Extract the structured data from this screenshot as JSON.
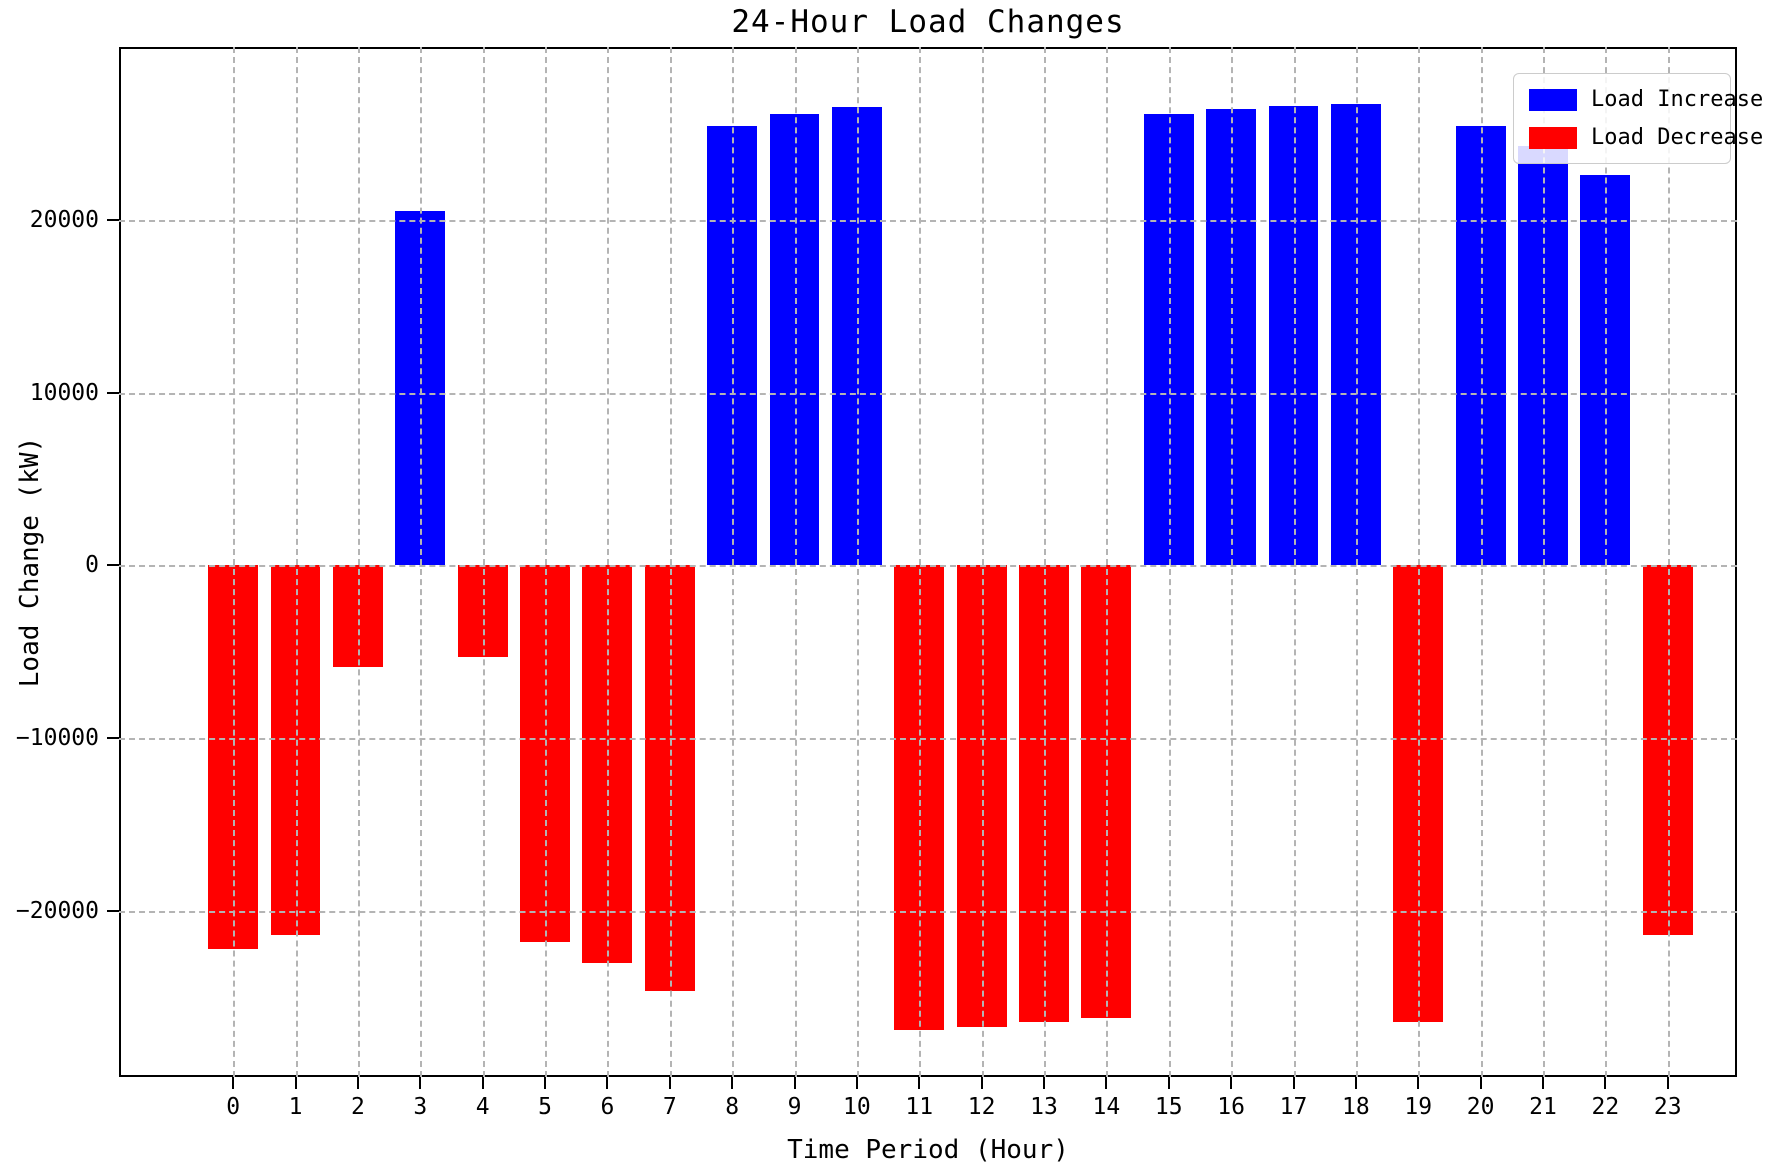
{
  "figure": {
    "title": "24-Hour Load Changes",
    "xlabel": "Time Period (Hour)",
    "ylabel": "Load Change (kW)"
  },
  "legend": {
    "position": "upper right",
    "items": [
      {
        "label": "Load Increase",
        "color": "#0000ff"
      },
      {
        "label": "Load Decrease",
        "color": "#ff0000"
      }
    ]
  },
  "chart_data": {
    "type": "bar",
    "title": "24-Hour Load Changes",
    "xlabel": "Time Period (Hour)",
    "ylabel": "Load Change (kW)",
    "categories": [
      "0",
      "1",
      "2",
      "3",
      "4",
      "5",
      "6",
      "7",
      "8",
      "9",
      "10",
      "11",
      "12",
      "13",
      "14",
      "15",
      "16",
      "17",
      "18",
      "19",
      "20",
      "21",
      "22",
      "23"
    ],
    "values": [
      -22200,
      -21400,
      -5900,
      20500,
      -5300,
      -21800,
      -23000,
      -24600,
      25400,
      26100,
      26500,
      -26900,
      -26700,
      -26400,
      -26200,
      26100,
      26400,
      26600,
      26700,
      -26400,
      25400,
      24300,
      22600,
      -21400
    ],
    "series_rule": "positive bars = Load Increase (blue), negative bars = Load Decrease (red)",
    "colors": {
      "increase": "#0000ff",
      "decrease": "#ff0000"
    },
    "bar_width": 0.8,
    "grid": true,
    "grid_style": "dashed, gray, drawn above bars",
    "xlim": [
      -1.83,
      24.11
    ],
    "ylim": [
      -29600,
      30000
    ],
    "yticks": [
      -20000,
      -10000,
      0,
      10000,
      20000
    ],
    "ytick_labels": [
      "−20000",
      "−10000",
      "0",
      "10000",
      "20000"
    ],
    "legend_position": "upper right"
  }
}
